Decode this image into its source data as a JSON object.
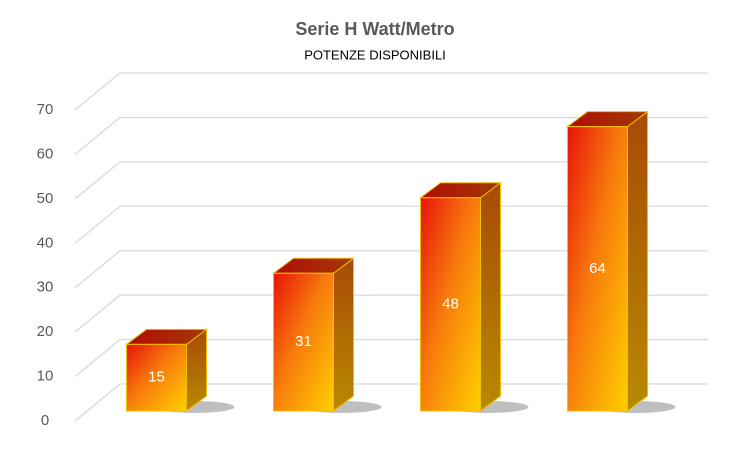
{
  "chart_data": {
    "type": "bar3d",
    "title": "Serie H Watt/Metro",
    "subtitle": "POTENZE DISPONIBILI",
    "categories": [
      null,
      null,
      null,
      null
    ],
    "values": [
      15,
      31,
      48,
      64
    ],
    "ylim": [
      0,
      70
    ],
    "yticks": [
      0,
      10,
      20,
      30,
      40,
      50,
      60,
      70
    ],
    "grid": true
  }
}
